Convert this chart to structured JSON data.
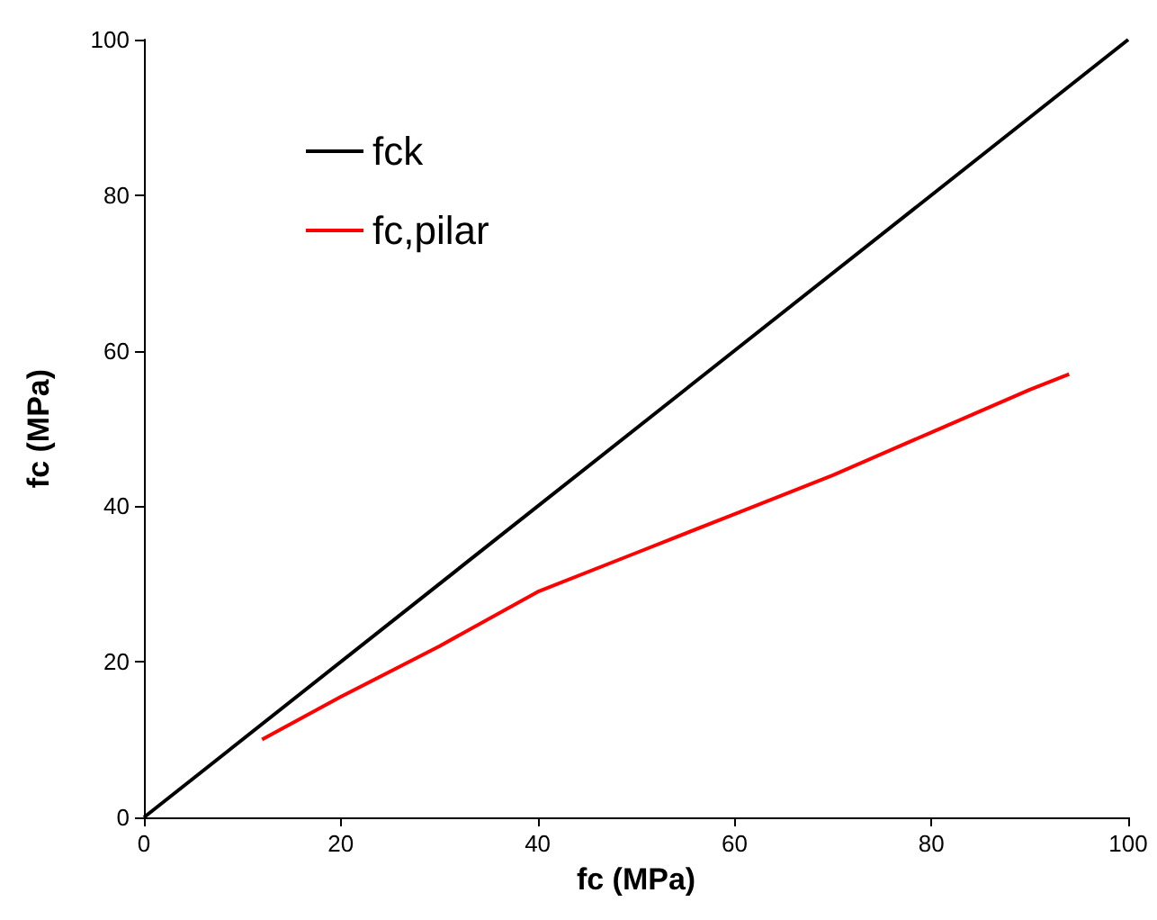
{
  "chart_data": {
    "type": "line",
    "xlabel": "fc (MPa)",
    "ylabel": "fc (MPa)",
    "xlim": [
      0,
      100
    ],
    "xticks": [
      0,
      20,
      40,
      60,
      80,
      100
    ],
    "ylim": [
      0,
      100
    ],
    "yticks": [
      0,
      20,
      40,
      60,
      80,
      100
    ],
    "series": [
      {
        "name": "fck",
        "color": "#000000",
        "x": [
          0,
          100
        ],
        "values": [
          0,
          100
        ]
      },
      {
        "name": "fc,pilar",
        "color": "#ff0000",
        "x": [
          12,
          20,
          30,
          40,
          50,
          60,
          70,
          80,
          90,
          94
        ],
        "values": [
          10,
          15.5,
          22,
          29,
          34,
          39,
          44,
          49.5,
          55,
          57
        ]
      }
    ],
    "legend": "top left",
    "grid": false,
    "marker": "none",
    "line_style": "solid"
  }
}
